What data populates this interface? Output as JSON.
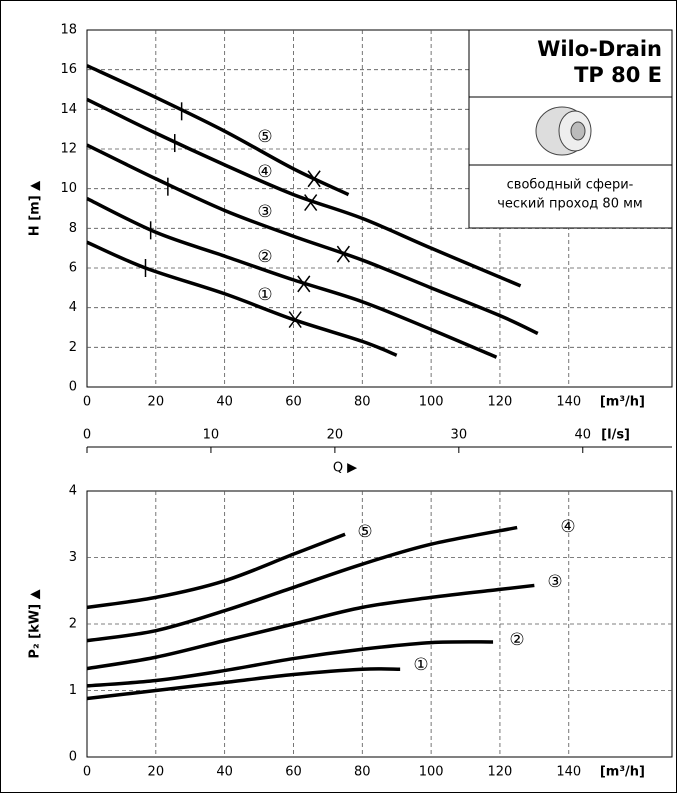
{
  "info_box": {
    "title": [
      "Wilo-Drain",
      "TP 80 E"
    ],
    "note": [
      "свободный сфери-",
      "ческий проход 80 мм"
    ]
  },
  "chart_data": [
    {
      "type": "line",
      "ylabel": "H [m] ▲",
      "xunit": "[m³/h]",
      "x2unit": "[l/s]",
      "xlabel": "Q ▶",
      "xlim": [
        0,
        170
      ],
      "ylim": [
        0,
        18
      ],
      "xticks": [
        0,
        20,
        40,
        60,
        80,
        100,
        120,
        140
      ],
      "yticks": [
        0,
        2,
        4,
        6,
        8,
        10,
        12,
        14,
        16,
        18
      ],
      "x2lim": [
        0,
        47.2
      ],
      "x2ticks": [
        0,
        10,
        20,
        30,
        40
      ],
      "grid": true,
      "series": [
        {
          "name": "①",
          "color": "#000000",
          "x": [
            0,
            17,
            40,
            60,
            80,
            90
          ],
          "values": [
            7.3,
            6.0,
            4.7,
            3.4,
            2.3,
            1.6
          ],
          "op_min": [
            17,
            6.0
          ],
          "op_max": [
            60.5,
            3.4
          ]
        },
        {
          "name": "②",
          "color": "#000000",
          "x": [
            0,
            20,
            40,
            60,
            80,
            100,
            119
          ],
          "values": [
            9.5,
            7.8,
            6.6,
            5.4,
            4.3,
            2.9,
            1.5
          ],
          "op_min": [
            18.5,
            7.9
          ],
          "op_max": [
            63,
            5.2
          ]
        },
        {
          "name": "③",
          "color": "#000000",
          "x": [
            0,
            20,
            40,
            60,
            80,
            100,
            120,
            131
          ],
          "values": [
            12.2,
            10.5,
            8.9,
            7.6,
            6.4,
            5.0,
            3.6,
            2.7
          ],
          "op_min": [
            23.5,
            10.1
          ],
          "op_max": [
            74.5,
            6.7
          ]
        },
        {
          "name": "④",
          "color": "#000000",
          "x": [
            0,
            20,
            40,
            60,
            80,
            100,
            126
          ],
          "values": [
            14.5,
            12.8,
            11.2,
            9.7,
            8.5,
            7.0,
            5.1
          ],
          "op_min": [
            25.5,
            12.3
          ],
          "op_max": [
            65,
            9.3
          ]
        },
        {
          "name": "⑤",
          "color": "#000000",
          "x": [
            0,
            20,
            40,
            60,
            76
          ],
          "values": [
            16.2,
            14.6,
            12.9,
            11.0,
            9.7
          ],
          "op_min": [
            27.5,
            13.9
          ],
          "op_max": [
            66,
            10.5
          ]
        }
      ]
    },
    {
      "type": "line",
      "ylabel": "P₂ [kW] ▲",
      "xunit": "[m³/h]",
      "xlim": [
        0,
        170
      ],
      "ylim": [
        0,
        4
      ],
      "xticks": [
        0,
        20,
        40,
        60,
        80,
        100,
        120,
        140
      ],
      "yticks": [
        0,
        1,
        2,
        3,
        4
      ],
      "grid": true,
      "series": [
        {
          "name": "①",
          "color": "#000000",
          "x": [
            0,
            20,
            40,
            60,
            80,
            91
          ],
          "values": [
            0.88,
            1.0,
            1.12,
            1.24,
            1.32,
            1.32
          ]
        },
        {
          "name": "②",
          "color": "#000000",
          "x": [
            0,
            20,
            40,
            60,
            80,
            100,
            118
          ],
          "values": [
            1.07,
            1.15,
            1.3,
            1.48,
            1.62,
            1.72,
            1.73
          ]
        },
        {
          "name": "③",
          "color": "#000000",
          "x": [
            0,
            20,
            40,
            60,
            80,
            100,
            120,
            130
          ],
          "values": [
            1.33,
            1.5,
            1.75,
            2.0,
            2.25,
            2.4,
            2.52,
            2.58
          ]
        },
        {
          "name": "④",
          "color": "#000000",
          "x": [
            0,
            20,
            40,
            60,
            80,
            100,
            125
          ],
          "values": [
            1.75,
            1.9,
            2.2,
            2.55,
            2.9,
            3.2,
            3.45
          ]
        },
        {
          "name": "⑤",
          "color": "#000000",
          "x": [
            0,
            20,
            40,
            60,
            75
          ],
          "values": [
            2.25,
            2.4,
            2.65,
            3.05,
            3.35
          ]
        }
      ]
    }
  ]
}
